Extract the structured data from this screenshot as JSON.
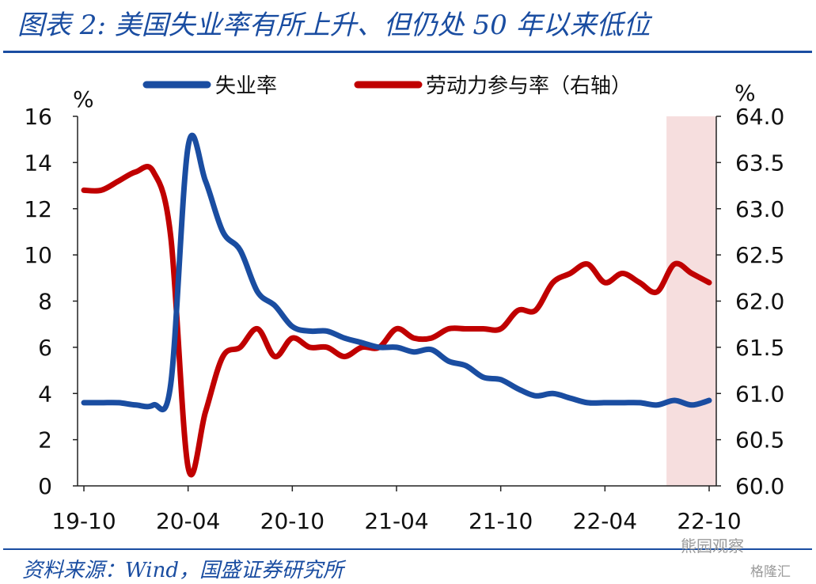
{
  "title": "图表 2:  美国失业率有所上升、但仍处 50 年以来低位",
  "source": "资料来源：Wind，国盛证券研究所",
  "watermark": "熊园观察",
  "watermark2": "格隆汇",
  "colors": {
    "unemployment": "#1a4da1",
    "participation": "#c00000",
    "shade": "#f6dede",
    "text_accent": "#1a4da1"
  },
  "chart_data": {
    "type": "line",
    "x": [
      "19-10",
      "19-11",
      "19-12",
      "20-01",
      "20-02",
      "20-03",
      "20-04",
      "20-05",
      "20-06",
      "20-07",
      "20-08",
      "20-09",
      "20-10",
      "20-11",
      "20-12",
      "21-01",
      "21-02",
      "21-03",
      "21-04",
      "21-05",
      "21-06",
      "21-07",
      "21-08",
      "21-09",
      "21-10",
      "21-11",
      "21-12",
      "22-01",
      "22-02",
      "22-03",
      "22-04",
      "22-05",
      "22-06",
      "22-07",
      "22-08",
      "22-09",
      "22-10"
    ],
    "x_tick_labels": [
      "19-10",
      "20-04",
      "20-10",
      "21-04",
      "21-10",
      "22-04",
      "22-10"
    ],
    "series": [
      {
        "name": "失业率",
        "axis": "left",
        "values": [
          3.6,
          3.6,
          3.6,
          3.5,
          3.5,
          4.4,
          14.7,
          13.2,
          11.0,
          10.2,
          8.4,
          7.8,
          6.9,
          6.7,
          6.7,
          6.4,
          6.2,
          6.0,
          6.0,
          5.8,
          5.9,
          5.4,
          5.2,
          4.7,
          4.6,
          4.2,
          3.9,
          4.0,
          3.8,
          3.6,
          3.6,
          3.6,
          3.6,
          3.5,
          3.7,
          3.5,
          3.7
        ]
      },
      {
        "name": "劳动力参与率（右轴）",
        "axis": "right",
        "values": [
          63.2,
          63.2,
          63.3,
          63.4,
          63.4,
          62.7,
          60.2,
          60.8,
          61.4,
          61.5,
          61.7,
          61.4,
          61.6,
          61.5,
          61.5,
          61.4,
          61.5,
          61.5,
          61.7,
          61.6,
          61.6,
          61.7,
          61.7,
          61.7,
          61.7,
          61.9,
          61.9,
          62.2,
          62.3,
          62.4,
          62.2,
          62.3,
          62.2,
          62.1,
          62.4,
          62.3,
          62.2
        ]
      }
    ],
    "left_axis": {
      "unit": "%",
      "ylim": [
        0,
        16
      ],
      "ticks": [
        "0",
        "2",
        "4",
        "6",
        "8",
        "10",
        "12",
        "14",
        "16"
      ]
    },
    "right_axis": {
      "unit": "%",
      "ylim": [
        60.0,
        64.0
      ],
      "ticks": [
        "60.0",
        "60.5",
        "61.0",
        "61.5",
        "62.0",
        "62.5",
        "63.0",
        "63.5",
        "64.0"
      ]
    },
    "shaded_region": {
      "start": "22-08",
      "end": "22-10"
    },
    "grid": false,
    "legend": "top"
  }
}
